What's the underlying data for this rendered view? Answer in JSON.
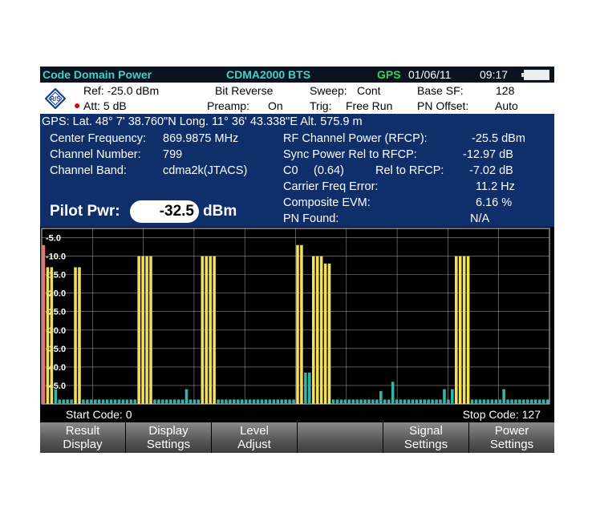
{
  "title_bar": {
    "mode": "Code Domain Power",
    "standard": "CDMA2000 BTS",
    "gps": "GPS",
    "date": "01/06/11",
    "time": "09:17"
  },
  "settings": {
    "ref": "Ref: -25.0 dBm",
    "att": "Att: 5 dB",
    "bit_reverse": "Bit Reverse",
    "preamp_label": "Preamp:",
    "preamp_value": "On",
    "sweep_label": "Sweep:",
    "sweep_value": "Cont",
    "trig_label": "Trig:",
    "trig_value": "Free Run",
    "base_sf_label": "Base SF:",
    "base_sf_value": "128",
    "pn_offset_label": "PN Offset:",
    "pn_offset_value": "Auto"
  },
  "gps_line": "GPS: Lat.   48°  7' 38.760\"N  Long.   11° 36' 43.338\"E  Alt. 575.9 m",
  "info": {
    "center_freq_label": "Center Frequency:",
    "center_freq_value": "869.9875 MHz",
    "channel_number_label": "Channel Number:",
    "channel_number_value": "799",
    "channel_band_label": "Channel Band:",
    "channel_band_value": "cdma2k(JTACS)",
    "rfcp_label": "RF Channel Power (RFCP):",
    "rfcp_value": "-25.5 dBm",
    "sync_label": "Sync Power Rel to RFCP:",
    "sync_value": "-12.97 dB",
    "c0_label": "C0",
    "c0_code": "(0.64)",
    "c0_rel_label": "Rel to RFCP:",
    "c0_value": "-7.02 dB",
    "carrier_label": "Carrier Freq Error:",
    "carrier_value": "11.2 Hz",
    "evm_label": "Composite EVM:",
    "evm_value": "6.16 %",
    "pn_found_label": "PN Found:",
    "pn_found_value": "N/A",
    "pilot_label": "Pilot Pwr:",
    "pilot_value": "-32.5",
    "pilot_unit": "dBm"
  },
  "chart_data": {
    "type": "bar",
    "ylim": [
      -50,
      -2.5
    ],
    "y_ticks": [
      "-5.0",
      "-10.0",
      "-15.0",
      "-20.0",
      "-25.0",
      "-30.0",
      "-35.0",
      "-40.0",
      "-45.0"
    ],
    "y_tick_values": [
      -5,
      -10,
      -15,
      -20,
      -25,
      -30,
      -35,
      -40,
      -45
    ],
    "x_range": [
      0,
      127
    ],
    "active_codes": [
      {
        "code": 0,
        "value": -7.0
      },
      {
        "code": 1,
        "value": -13.0
      },
      {
        "code": 2,
        "value": -13.0
      },
      {
        "code": 8,
        "value": -13.0
      },
      {
        "code": 9,
        "value": -13.0
      },
      {
        "code": 24,
        "value": -10.0
      },
      {
        "code": 25,
        "value": -10.0
      },
      {
        "code": 26,
        "value": -10.0
      },
      {
        "code": 27,
        "value": -10.0
      },
      {
        "code": 40,
        "value": -10.0
      },
      {
        "code": 41,
        "value": -10.0
      },
      {
        "code": 42,
        "value": -10.0
      },
      {
        "code": 43,
        "value": -10.0
      },
      {
        "code": 64,
        "value": -7.0
      },
      {
        "code": 65,
        "value": -7.0
      },
      {
        "code": 68,
        "value": -10.0
      },
      {
        "code": 69,
        "value": -10.0
      },
      {
        "code": 70,
        "value": -10.0
      },
      {
        "code": 71,
        "value": -12.0
      },
      {
        "code": 72,
        "value": -12.0
      },
      {
        "code": 104,
        "value": -10.0
      },
      {
        "code": 105,
        "value": -10.0
      },
      {
        "code": 106,
        "value": -10.0
      },
      {
        "code": 107,
        "value": -10.0
      }
    ],
    "noise_level": -48.8,
    "noise_exceptions": [
      {
        "code": 3,
        "value": -46.0
      },
      {
        "code": 36,
        "value": -46.0
      },
      {
        "code": 66,
        "value": -41.5
      },
      {
        "code": 67,
        "value": -41.5
      },
      {
        "code": 85,
        "value": -46.5
      },
      {
        "code": 88,
        "value": -44.0
      },
      {
        "code": 101,
        "value": -46.0
      },
      {
        "code": 103,
        "value": -46.0
      },
      {
        "code": 116,
        "value": -46.0
      }
    ],
    "colors": {
      "active": "#f2df5a",
      "pilot": "#ff6a6a",
      "inactive": "#38b3a8",
      "grid": "#cfcfcf"
    }
  },
  "code_axis": {
    "start": "Start Code: 0",
    "stop": "Stop Code: 127"
  },
  "softkeys": [
    {
      "line1": "Result",
      "line2": "Display"
    },
    {
      "line1": "Display",
      "line2": "Settings"
    },
    {
      "line1": "Level",
      "line2": "Adjust"
    },
    {
      "line1": "",
      "line2": ""
    },
    {
      "line1": "Signal",
      "line2": "Settings"
    },
    {
      "line1": "Power",
      "line2": "Settings"
    }
  ]
}
